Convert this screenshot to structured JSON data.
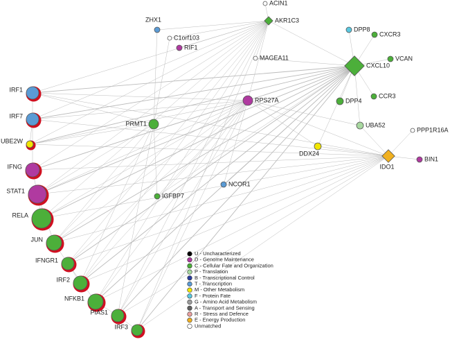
{
  "nodes": [
    {
      "label": "ACIN1",
      "color": "#ffffff"
    },
    {
      "label": "AKR1C3",
      "color": "#4caf3a"
    },
    {
      "label": "ZHX1",
      "color": "#5b9bd5"
    },
    {
      "label": "C1orf103",
      "color": "#ffffff"
    },
    {
      "label": "RIF1",
      "color": "#b03aa0"
    },
    {
      "label": "MAGEA11",
      "color": "#ffffff"
    },
    {
      "label": "DPP8",
      "color": "#5ac8e0"
    },
    {
      "label": "CXCR3",
      "color": "#4caf3a"
    },
    {
      "label": "VCAN",
      "color": "#4caf3a"
    },
    {
      "label": "CXCL10",
      "color": "#4caf3a"
    },
    {
      "label": "RPS27A",
      "color": "#b03aa0"
    },
    {
      "label": "CCR3",
      "color": "#4caf3a"
    },
    {
      "label": "DPP4",
      "color": "#4caf3a"
    },
    {
      "label": "PRMT1",
      "color": "#4caf3a"
    },
    {
      "label": "UBA52",
      "color": "#a8d8a0"
    },
    {
      "label": "PPP1R16A",
      "color": "#ffffff"
    },
    {
      "label": "DDX24",
      "color": "#f2e600"
    },
    {
      "label": "IDO1",
      "color": "#f0b020"
    },
    {
      "label": "BIN1",
      "color": "#b03aa0"
    },
    {
      "label": "NCOR1",
      "color": "#5b9bd5"
    },
    {
      "label": "IGFBP7",
      "color": "#4caf3a"
    },
    {
      "label": "IRF1",
      "color": "#5b9bd5"
    },
    {
      "label": "IRF7",
      "color": "#5b9bd5"
    },
    {
      "label": "UBE2W",
      "color": "#f2e600"
    },
    {
      "label": "IFNG",
      "color": "#b03aa0"
    },
    {
      "label": "STAT1",
      "color": "#b03aa0"
    },
    {
      "label": "RELA",
      "color": "#4caf3a"
    },
    {
      "label": "JUN",
      "color": "#4caf3a"
    },
    {
      "label": "IFNGR1",
      "color": "#4caf3a"
    },
    {
      "label": "IRF2",
      "color": "#4caf3a"
    },
    {
      "label": "NFKB1",
      "color": "#4caf3a"
    },
    {
      "label": "PIAS1",
      "color": "#4caf3a"
    },
    {
      "label": "IRF3",
      "color": "#4caf3a"
    }
  ],
  "legend": [
    {
      "label": "U - Uncharacterized",
      "color": "#000000"
    },
    {
      "label": "D - Genome Maintenance",
      "color": "#b03aa0"
    },
    {
      "label": "C - Cellular Fate and Organization",
      "color": "#4caf3a"
    },
    {
      "label": "P - Translation",
      "color": "#a8d8a0"
    },
    {
      "label": "B - Transcriptional Control",
      "color": "#2a3c9c"
    },
    {
      "label": "T - Transcription",
      "color": "#5b9bd5"
    },
    {
      "label": "M - Other Metabolism",
      "color": "#f2e600"
    },
    {
      "label": "F - Protein Fate",
      "color": "#5ac8e0"
    },
    {
      "label": "G - Amino Acid Metabolism",
      "color": "#9e9e9e"
    },
    {
      "label": "A - Transport and Sensing",
      "color": "#606060"
    },
    {
      "label": "R - Stress and Defence",
      "color": "#e8a0a0"
    },
    {
      "label": "E - Energy Production",
      "color": "#f0b020"
    },
    {
      "label": "Unmatched",
      "color": "#ffffff"
    }
  ]
}
